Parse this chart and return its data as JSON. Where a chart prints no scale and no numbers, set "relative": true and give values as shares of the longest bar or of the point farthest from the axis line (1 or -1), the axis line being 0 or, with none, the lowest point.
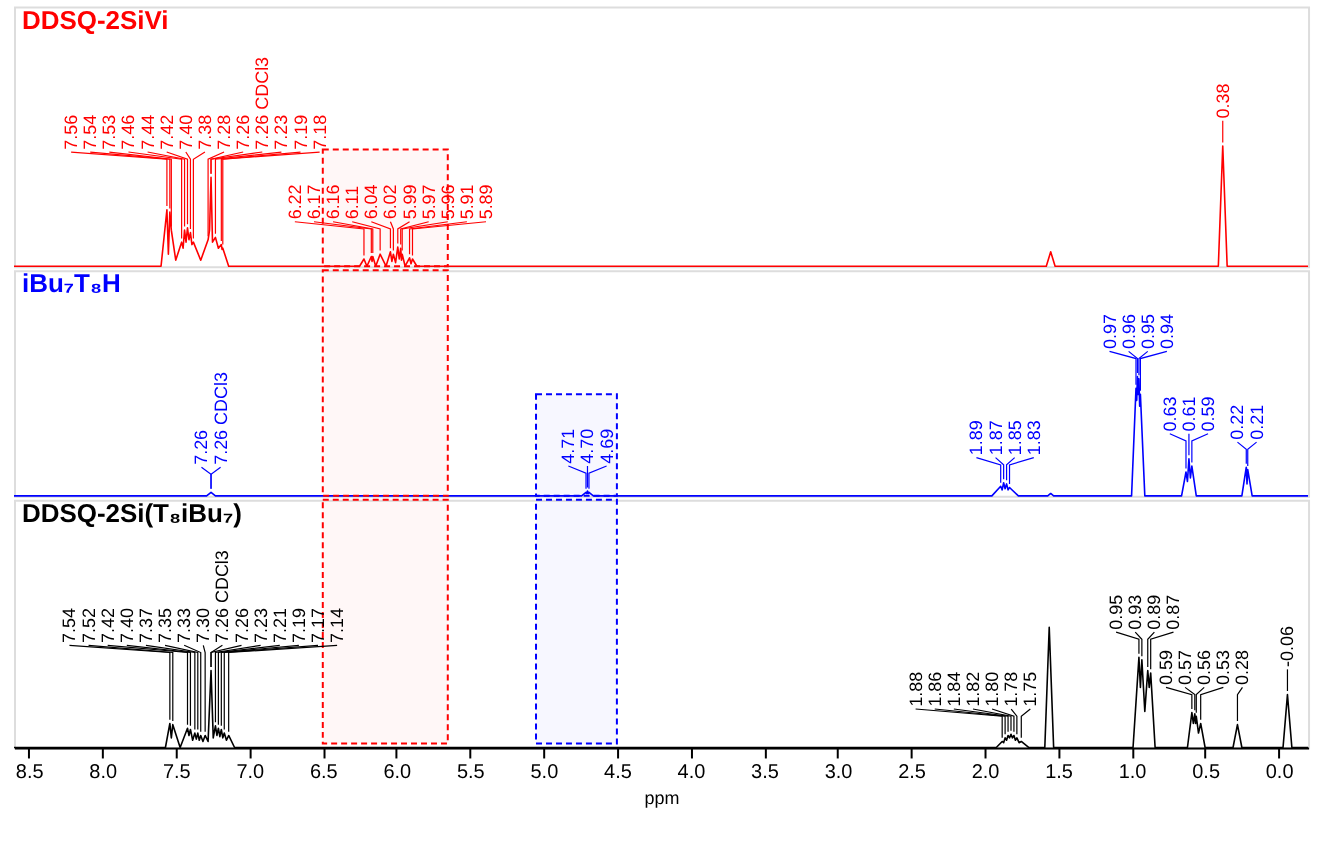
{
  "chart_data": [
    {
      "type": "line",
      "relative": true,
      "title": "DDSQ-2SiVi",
      "xlim": [
        8.6,
        -0.2
      ],
      "tick_labels": false,
      "series": [
        {
          "color": "#ff0000",
          "x": [
            8.6,
            7.6,
            7.56,
            7.55,
            7.54,
            7.53,
            7.5,
            7.46,
            7.45,
            7.44,
            7.43,
            7.42,
            7.41,
            7.4,
            7.39,
            7.38,
            7.33,
            7.28,
            7.27,
            7.26,
            7.25,
            7.23,
            7.21,
            7.19,
            7.185,
            7.18,
            7.14,
            6.25,
            6.22,
            6.2,
            6.17,
            6.165,
            6.16,
            6.14,
            6.11,
            6.07,
            6.04,
            6.03,
            6.02,
            6.005,
            5.99,
            5.98,
            5.97,
            5.965,
            5.96,
            5.94,
            5.91,
            5.9,
            5.89,
            5.86,
            1.58,
            1.55,
            1.52,
            0.41,
            0.38,
            0.35,
            -0.2
          ],
          "values": [
            0,
            0,
            0.47,
            0.1,
            0.45,
            0.3,
            0.05,
            0.2,
            0.15,
            0.3,
            0.2,
            0.32,
            0.22,
            0.28,
            0.18,
            0.2,
            0.05,
            0.22,
            0.3,
            0.74,
            0.2,
            0.24,
            0.15,
            0.18,
            0.14,
            0.15,
            0,
            0,
            0.06,
            0,
            0.08,
            0.04,
            0.08,
            0,
            0.1,
            0,
            0.12,
            0.04,
            0.1,
            0.03,
            0.16,
            0.06,
            0.15,
            0.05,
            0.1,
            0,
            0.07,
            0.02,
            0.06,
            0,
            0,
            0.12,
            0,
            0,
            1,
            0,
            0
          ]
        }
      ],
      "bands": [
        {
          "axis": "x",
          "from": 6.5,
          "to": 5.65,
          "color": "#ff0000"
        }
      ],
      "annotations": [
        {
          "text": "7.56",
          "x": 7.56,
          "y": 0.47
        },
        {
          "text": "7.54",
          "x": 7.54,
          "y": 0.45
        },
        {
          "text": "7.53",
          "x": 7.53,
          "y": 0.3
        },
        {
          "text": "7.46",
          "x": 7.46,
          "y": 0.2
        },
        {
          "text": "7.44",
          "x": 7.44,
          "y": 0.3
        },
        {
          "text": "7.42",
          "x": 7.42,
          "y": 0.32
        },
        {
          "text": "7.40",
          "x": 7.4,
          "y": 0.28
        },
        {
          "text": "7.38",
          "x": 7.38,
          "y": 0.2
        },
        {
          "text": "7.28",
          "x": 7.28,
          "y": 0.22
        },
        {
          "text": "7.26",
          "x": 7.26,
          "y": 0.74
        },
        {
          "text": "7.26 CDCl3",
          "x": 7.26,
          "y": 0.74
        },
        {
          "text": "7.23",
          "x": 7.23,
          "y": 0.24
        },
        {
          "text": "7.19",
          "x": 7.19,
          "y": 0.18
        },
        {
          "text": "7.18",
          "x": 7.18,
          "y": 0.15
        },
        {
          "text": "6.22",
          "x": 6.22,
          "y": 0.06
        },
        {
          "text": "6.17",
          "x": 6.17,
          "y": 0.08
        },
        {
          "text": "6.16",
          "x": 6.16,
          "y": 0.08
        },
        {
          "text": "6.11",
          "x": 6.11,
          "y": 0.1
        },
        {
          "text": "6.04",
          "x": 6.04,
          "y": 0.12
        },
        {
          "text": "6.02",
          "x": 6.02,
          "y": 0.1
        },
        {
          "text": "5.99",
          "x": 5.99,
          "y": 0.16
        },
        {
          "text": "5.97",
          "x": 5.97,
          "y": 0.15
        },
        {
          "text": "5.96",
          "x": 5.96,
          "y": 0.1
        },
        {
          "text": "5.91",
          "x": 5.91,
          "y": 0.07
        },
        {
          "text": "5.89",
          "x": 5.89,
          "y": 0.06
        },
        {
          "text": "0.38",
          "x": 0.38,
          "y": 1
        }
      ]
    },
    {
      "type": "line",
      "relative": true,
      "title": "iBu₇T₈H",
      "xlim": [
        8.6,
        -0.2
      ],
      "tick_labels": false,
      "series": [
        {
          "color": "#0000ff",
          "x": [
            8.6,
            7.29,
            7.26,
            7.23,
            4.74,
            4.71,
            4.705,
            4.7,
            4.695,
            4.69,
            4.66,
            1.95,
            1.89,
            1.88,
            1.87,
            1.86,
            1.85,
            1.84,
            1.83,
            1.77,
            1.57,
            1.55,
            1.53,
            1.0,
            0.97,
            0.965,
            0.96,
            0.955,
            0.95,
            0.945,
            0.94,
            0.91,
            0.66,
            0.63,
            0.62,
            0.61,
            0.6,
            0.59,
            0.56,
            0.25,
            0.22,
            0.215,
            0.21,
            0.18,
            -0.2
          ],
          "values": [
            0,
            0,
            0.03,
            0,
            0,
            0.03,
            0.02,
            0.04,
            0.02,
            0.03,
            0,
            0,
            0.08,
            0.05,
            0.11,
            0.06,
            0.1,
            0.05,
            0.07,
            0,
            0,
            0.02,
            0,
            0,
            0.9,
            0.8,
            1,
            0.85,
            0.98,
            0.75,
            0.85,
            0,
            0,
            0.2,
            0.12,
            0.31,
            0.15,
            0.25,
            0,
            0,
            0.24,
            0.1,
            0.22,
            0,
            0
          ]
        }
      ],
      "bands": [
        {
          "axis": "x",
          "from": 6.5,
          "to": 5.65,
          "color": "#ff0000"
        },
        {
          "axis": "x",
          "from": 5.05,
          "to": 4.5,
          "color": "#0000ff"
        }
      ],
      "annotations": [
        {
          "text": "7.26",
          "x": 7.26,
          "y": 0.03
        },
        {
          "text": "7.26 CDCl3",
          "x": 7.26,
          "y": 0.03
        },
        {
          "text": "4.71",
          "x": 4.71,
          "y": 0.03
        },
        {
          "text": "4.70",
          "x": 4.7,
          "y": 0.04
        },
        {
          "text": "4.69",
          "x": 4.69,
          "y": 0.03
        },
        {
          "text": "1.89",
          "x": 1.89,
          "y": 0.08
        },
        {
          "text": "1.87",
          "x": 1.87,
          "y": 0.11
        },
        {
          "text": "1.85",
          "x": 1.85,
          "y": 0.1
        },
        {
          "text": "1.83",
          "x": 1.83,
          "y": 0.07
        },
        {
          "text": "0.97",
          "x": 0.97,
          "y": 0.9
        },
        {
          "text": "0.96",
          "x": 0.96,
          "y": 1
        },
        {
          "text": "0.95",
          "x": 0.95,
          "y": 0.98
        },
        {
          "text": "0.94",
          "x": 0.94,
          "y": 0.85
        },
        {
          "text": "0.63",
          "x": 0.63,
          "y": 0.2
        },
        {
          "text": "0.61",
          "x": 0.61,
          "y": 0.31
        },
        {
          "text": "0.59",
          "x": 0.59,
          "y": 0.25
        },
        {
          "text": "0.22",
          "x": 0.22,
          "y": 0.24
        },
        {
          "text": "0.21",
          "x": 0.21,
          "y": 0.22
        }
      ]
    },
    {
      "type": "line",
      "relative": true,
      "title": "DDSQ-2Si(T₈iBu₇)",
      "xlim": [
        8.6,
        -0.2
      ],
      "tick_labels": "x",
      "xlabel": "ppm",
      "xticks": [
        {
          "value": 8.5,
          "label": "8.5"
        },
        {
          "value": 8,
          "label": "8.0"
        },
        {
          "value": 7.5,
          "label": "7.5"
        },
        {
          "value": 7,
          "label": "7.0"
        },
        {
          "value": 6.5,
          "label": "6.5"
        },
        {
          "value": 6,
          "label": "6.0"
        },
        {
          "value": 5.5,
          "label": "5.5"
        },
        {
          "value": 5,
          "label": "5.0"
        },
        {
          "value": 4.5,
          "label": "4.5"
        },
        {
          "value": 4,
          "label": "4.0"
        },
        {
          "value": 3.5,
          "label": "3.5"
        },
        {
          "value": 3,
          "label": "3.0"
        },
        {
          "value": 2.5,
          "label": "2.5"
        },
        {
          "value": 2,
          "label": "2.0"
        },
        {
          "value": 1.5,
          "label": "1.5"
        },
        {
          "value": 1,
          "label": "1.0"
        },
        {
          "value": 0.5,
          "label": "0.5"
        },
        {
          "value": 0,
          "label": "0.0"
        }
      ],
      "series": [
        {
          "color": "#000000",
          "x": [
            8.6,
            7.57,
            7.54,
            7.53,
            7.52,
            7.47,
            7.42,
            7.41,
            7.4,
            7.385,
            7.37,
            7.36,
            7.35,
            7.34,
            7.33,
            7.315,
            7.3,
            7.28,
            7.26,
            7.245,
            7.23,
            7.22,
            7.21,
            7.2,
            7.19,
            7.18,
            7.17,
            7.155,
            7.14,
            7.1,
            1.92,
            1.88,
            1.87,
            1.86,
            1.85,
            1.84,
            1.83,
            1.82,
            1.81,
            1.8,
            1.79,
            1.78,
            1.765,
            1.75,
            1.7,
            1.59,
            1.56,
            1.53,
            0.99,
            0.95,
            0.94,
            0.93,
            0.91,
            0.89,
            0.88,
            0.87,
            0.84,
            0.62,
            0.59,
            0.58,
            0.57,
            0.565,
            0.56,
            0.545,
            0.53,
            0.5,
            0.31,
            0.28,
            0.25,
            -0.03,
            -0.06,
            -0.09,
            -0.2
          ],
          "values": [
            0,
            0,
            0.2,
            0.08,
            0.19,
            0,
            0.16,
            0.1,
            0.15,
            0.06,
            0.12,
            0.07,
            0.12,
            0.06,
            0.1,
            0.05,
            0.1,
            0.05,
            0.64,
            0.08,
            0.18,
            0.1,
            0.16,
            0.09,
            0.15,
            0.08,
            0.12,
            0.06,
            0.1,
            0,
            0,
            0.05,
            0.04,
            0.08,
            0.06,
            0.1,
            0.08,
            0.11,
            0.08,
            0.1,
            0.06,
            0.08,
            0.04,
            0.05,
            0,
            0,
            1,
            0,
            0,
            0.75,
            0.5,
            0.73,
            0.3,
            0.64,
            0.5,
            0.62,
            0,
            0,
            0.29,
            0.2,
            0.28,
            0.2,
            0.26,
            0.12,
            0.2,
            0,
            0,
            0.19,
            0,
            0,
            0.44,
            0,
            0
          ]
        }
      ],
      "bands": [
        {
          "axis": "x",
          "from": 6.5,
          "to": 5.65,
          "color": "#ff0000"
        },
        {
          "axis": "x",
          "from": 5.05,
          "to": 4.5,
          "color": "#0000ff"
        }
      ],
      "annotations": [
        {
          "text": "7.54",
          "x": 7.54,
          "y": 0.2
        },
        {
          "text": "7.52",
          "x": 7.52,
          "y": 0.19
        },
        {
          "text": "7.42",
          "x": 7.42,
          "y": 0.16
        },
        {
          "text": "7.40",
          "x": 7.4,
          "y": 0.15
        },
        {
          "text": "7.37",
          "x": 7.37,
          "y": 0.12
        },
        {
          "text": "7.35",
          "x": 7.35,
          "y": 0.12
        },
        {
          "text": "7.33",
          "x": 7.33,
          "y": 0.1
        },
        {
          "text": "7.30",
          "x": 7.3,
          "y": 0.1
        },
        {
          "text": "7.26 CDCl3",
          "x": 7.26,
          "y": 0.64
        },
        {
          "text": "7.26",
          "x": 7.26,
          "y": 0.64
        },
        {
          "text": "7.23",
          "x": 7.23,
          "y": 0.18
        },
        {
          "text": "7.21",
          "x": 7.21,
          "y": 0.16
        },
        {
          "text": "7.19",
          "x": 7.19,
          "y": 0.15
        },
        {
          "text": "7.17",
          "x": 7.17,
          "y": 0.12
        },
        {
          "text": "7.14",
          "x": 7.14,
          "y": 0.1
        },
        {
          "text": "1.88",
          "x": 1.88,
          "y": 0.05
        },
        {
          "text": "1.86",
          "x": 1.86,
          "y": 0.08
        },
        {
          "text": "1.84",
          "x": 1.84,
          "y": 0.1
        },
        {
          "text": "1.82",
          "x": 1.82,
          "y": 0.11
        },
        {
          "text": "1.80",
          "x": 1.8,
          "y": 0.1
        },
        {
          "text": "1.78",
          "x": 1.78,
          "y": 0.08
        },
        {
          "text": "1.75",
          "x": 1.75,
          "y": 0.05
        },
        {
          "text": "0.95",
          "x": 0.95,
          "y": 0.75
        },
        {
          "text": "0.93",
          "x": 0.93,
          "y": 0.73
        },
        {
          "text": "0.89",
          "x": 0.89,
          "y": 0.64
        },
        {
          "text": "0.87",
          "x": 0.87,
          "y": 0.62
        },
        {
          "text": "0.59",
          "x": 0.59,
          "y": 0.29
        },
        {
          "text": "0.57",
          "x": 0.57,
          "y": 0.28
        },
        {
          "text": "0.56",
          "x": 0.56,
          "y": 0.26
        },
        {
          "text": "0.53",
          "x": 0.53,
          "y": 0.2
        },
        {
          "text": "0.28",
          "x": 0.28,
          "y": 0.19
        },
        {
          "text": "-0.06",
          "x": -0.06,
          "y": 0.44
        }
      ]
    }
  ]
}
